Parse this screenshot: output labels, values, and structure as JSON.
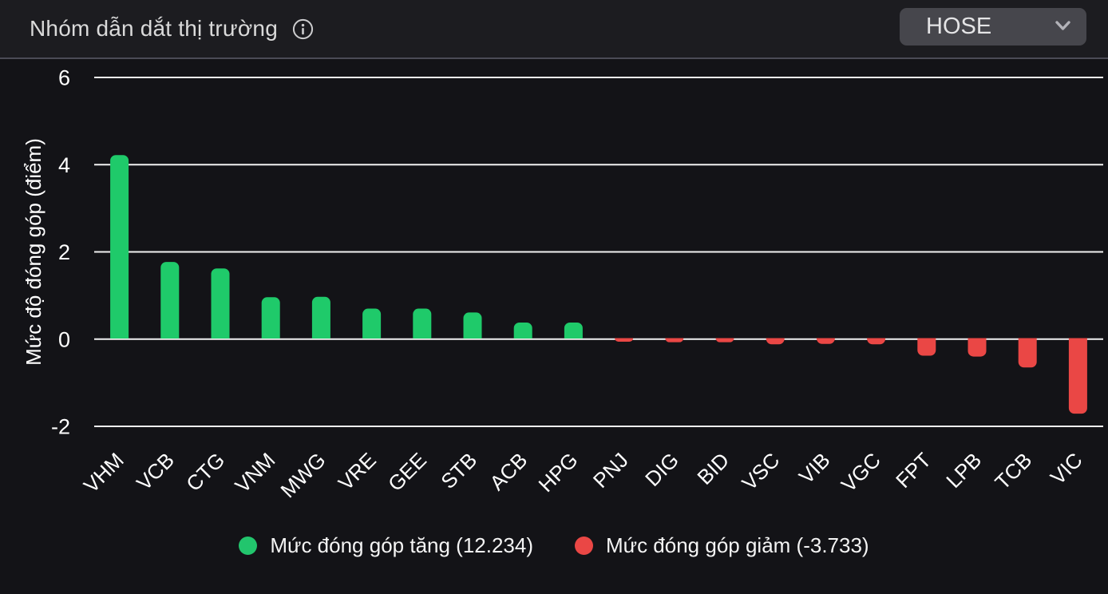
{
  "header": {
    "title": "Nhóm dẫn dắt thị trường",
    "info_icon": "info-circle-icon",
    "market_selector": {
      "value": "HOSE",
      "icon": "chevron-down-icon"
    }
  },
  "chart_data": {
    "type": "bar",
    "title": "Nhóm dẫn dắt thị trường",
    "xlabel": "",
    "ylabel": "Mức độ đóng góp (điểm)",
    "categories": [
      "VHM",
      "VCB",
      "CTG",
      "VNM",
      "MWG",
      "VRE",
      "GEE",
      "STB",
      "ACB",
      "HPG",
      "PNJ",
      "DIG",
      "BID",
      "VSC",
      "VIB",
      "VGC",
      "FPT",
      "LPB",
      "TCB",
      "VIC"
    ],
    "values": [
      4.22,
      1.77,
      1.62,
      0.96,
      0.97,
      0.7,
      0.7,
      0.61,
      0.38,
      0.38,
      -0.06,
      -0.07,
      -0.07,
      -0.12,
      -0.11,
      -0.12,
      -0.38,
      -0.4,
      -0.65,
      -1.71
    ],
    "yticks": [
      6,
      4,
      2,
      0,
      -2
    ],
    "ylim": [
      -2,
      6
    ],
    "grid": true,
    "x_tick_rotation": 45,
    "legend_position": "bottom",
    "legend": [
      {
        "label": "Mức đóng góp tăng (12.234)",
        "color": "#22c56d",
        "series": "positive"
      },
      {
        "label": "Mức đóng góp giảm (-3.733)",
        "color": "#ea4745",
        "series": "negative"
      }
    ]
  },
  "colors": {
    "background": "#131317",
    "header_background": "#1c1c20",
    "divider": "#4b4b56",
    "grid_line": "#f2f2f2",
    "positive_bar": "#1fca6a",
    "negative_bar": "#ea4745",
    "axis_text": "#ffffff",
    "title_text": "#dadada",
    "legend_text": "#f4f4f4",
    "dropdown_background": "#46464c"
  }
}
